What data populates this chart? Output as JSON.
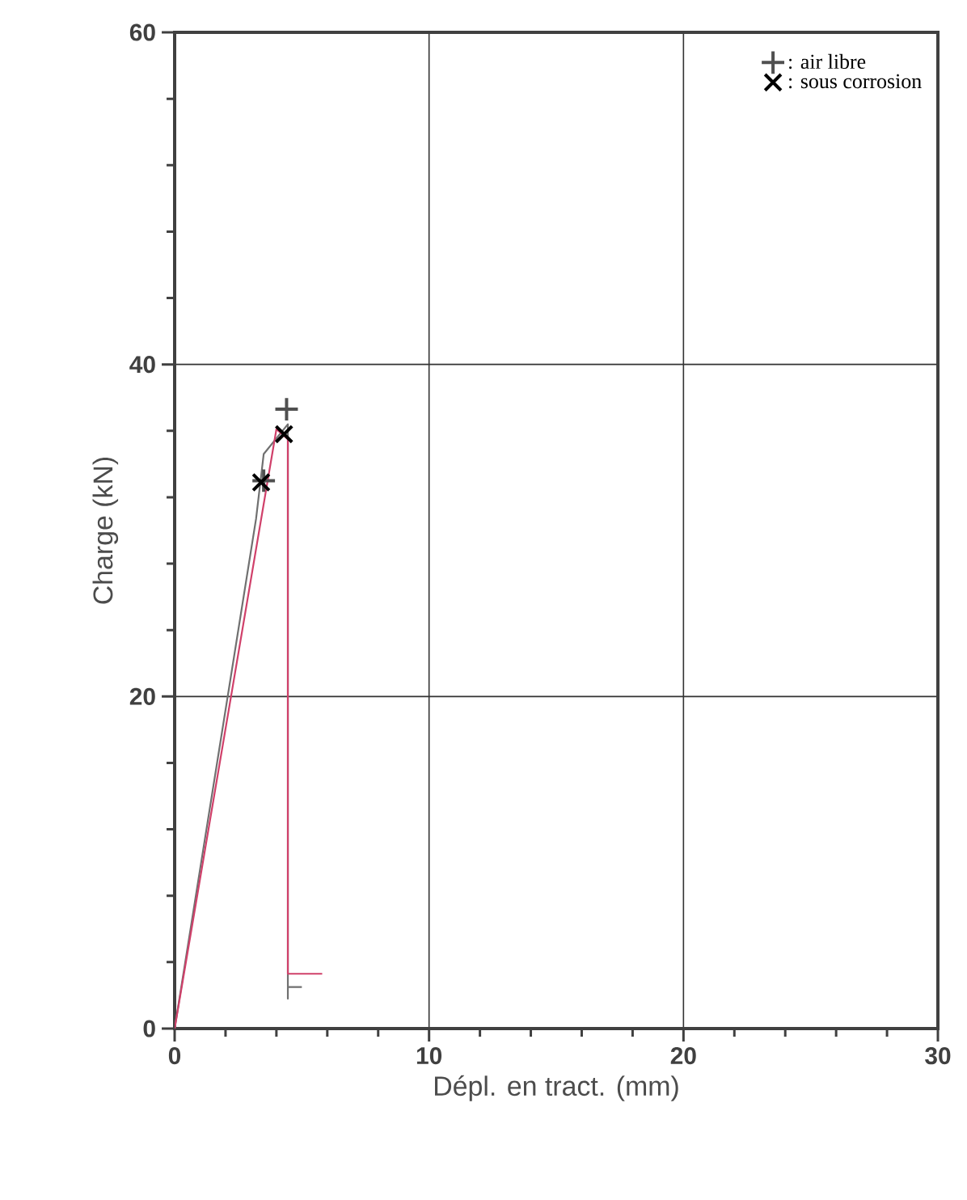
{
  "chart_data": {
    "type": "line",
    "xlabel": "Dépl. en tract. (mm)",
    "ylabel": "Charge (kN)",
    "xlim": [
      0,
      30
    ],
    "ylim": [
      0,
      60
    ],
    "xticks": [
      0,
      10,
      20,
      30
    ],
    "yticks": [
      0,
      20,
      40,
      60
    ],
    "grid": true,
    "legend": "top right",
    "series": [
      {
        "color": "#707070",
        "x": [
          0,
          3.2,
          3.5,
          4.45,
          4.45,
          4.45,
          5.0
        ],
        "values": [
          0,
          30.7,
          34.6,
          36.4,
          1.8,
          2.5,
          2.5
        ]
      },
      {
        "color": "#d0406a",
        "x": [
          0,
          4.0,
          4.45,
          4.45,
          5.8
        ],
        "values": [
          0,
          36.1,
          35.5,
          3.3,
          3.3
        ]
      },
      {
        "type": "scatter",
        "name": ": air libre",
        "marker": "cross",
        "color": "#505050",
        "x": [
          3.5,
          4.4
        ],
        "values": [
          33.0,
          37.3
        ]
      },
      {
        "type": "scatter",
        "name": ": sous corrosion",
        "marker": "x",
        "color": "#000000",
        "x": [
          3.4,
          4.3
        ],
        "values": [
          32.9,
          35.8
        ]
      }
    ]
  }
}
